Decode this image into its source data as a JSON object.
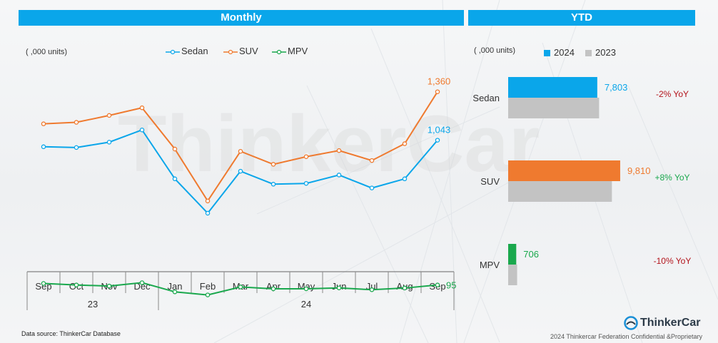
{
  "headers": {
    "monthly": "Monthly",
    "ytd": "YTD"
  },
  "units": {
    "monthly": "( ,000 units)",
    "ytd": "( ,000 units)"
  },
  "watermark": "ThinkerCar",
  "colors": {
    "header": "#0aa6ea",
    "sedan": "#0aa6ea",
    "suv": "#ef7a2f",
    "mpv": "#1aa84d",
    "y2023": "#c3c3c3",
    "yoy_negative": "#b3141c",
    "yoy_positive": "#1aa84d"
  },
  "chart_data": [
    {
      "type": "line",
      "categories": [
        "Sep",
        "Oct",
        "Nov",
        "Dec",
        "Jan",
        "Feb",
        "Mar",
        "Apr",
        "May",
        "Jun",
        "Jul",
        "Aug",
        "Sep"
      ],
      "year_groups": [
        {
          "label": "23",
          "count": 4
        },
        {
          "label": "24",
          "count": 9
        }
      ],
      "series": [
        {
          "name": "Sedan",
          "values": [
            1000,
            995,
            1030,
            1110,
            790,
            565,
            840,
            755,
            760,
            815,
            730,
            790,
            1043
          ]
        },
        {
          "name": "SUV",
          "values": [
            1150,
            1160,
            1205,
            1255,
            985,
            645,
            970,
            885,
            935,
            975,
            910,
            1020,
            1360
          ]
        },
        {
          "name": "MPV",
          "values": [
            105,
            95,
            88,
            110,
            50,
            30,
            82,
            70,
            70,
            76,
            64,
            75,
            95
          ]
        }
      ],
      "end_labels": [
        "1,043",
        "1,360",
        "95"
      ],
      "ylim": [
        0,
        1500
      ],
      "legend": "top"
    },
    {
      "type": "bar",
      "orientation": "horizontal",
      "categories": [
        "Sedan",
        "SUV",
        "MPV"
      ],
      "series": [
        {
          "name": "2024",
          "values": [
            7803,
            9810,
            706
          ]
        },
        {
          "name": "2023",
          "values": [
            7962,
            9084,
            784
          ]
        }
      ],
      "value_labels": [
        "7,803",
        "9,810",
        "706"
      ],
      "yoy": [
        "-2% YoY",
        "+8% YoY",
        "-10% YoY"
      ],
      "legend": "top"
    }
  ],
  "footer": {
    "source": "Data source: ThinkerCar Database",
    "brand": "ThinkerCar",
    "copyright": "2024 Thinkercar Federation Confidential &Proprietary"
  }
}
